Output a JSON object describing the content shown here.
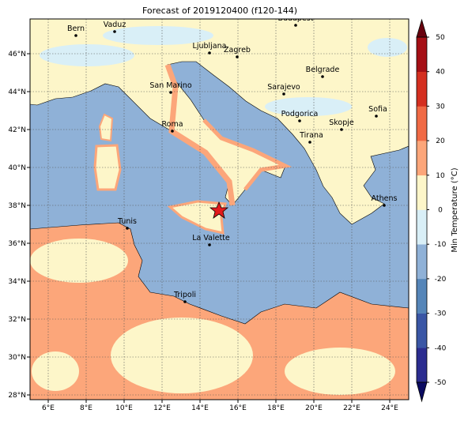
{
  "title": "Forecast of 2019120400 (f120-144)",
  "map": {
    "lon_ticks": [
      "6°E",
      "8°E",
      "10°E",
      "12°E",
      "14°E",
      "16°E",
      "18°E",
      "20°E",
      "22°E",
      "24°E"
    ],
    "lat_ticks": [
      "46°N",
      "44°N",
      "42°N",
      "40°N",
      "38°N",
      "36°N",
      "34°N",
      "32°N",
      "30°N",
      "28°N"
    ],
    "cities": [
      "Bern",
      "Vaduz",
      "Budapest",
      "Ljubljana",
      "Zagreb",
      "Belgrade",
      "San Marino",
      "Sarajevo",
      "Sofia",
      "Podgorica",
      "Skopje",
      "Roma",
      "Tirana",
      "Athens",
      "Tunis",
      "La Valette",
      "Tripoli"
    ]
  },
  "colorbar": {
    "label": "Min Temperature (°C)",
    "ticks": [
      -50,
      -40,
      -30,
      -20,
      -10,
      0,
      10,
      20,
      30,
      40,
      50
    ],
    "colors": [
      "#2b2c8f",
      "#3a56a5",
      "#5585b8",
      "#8fb1d7",
      "#d9eff7",
      "#fdf6c9",
      "#fca67a",
      "#f06a45",
      "#d42f20",
      "#a50f15"
    ],
    "under_color": "#0a0a60",
    "over_color": "#67000d"
  }
}
